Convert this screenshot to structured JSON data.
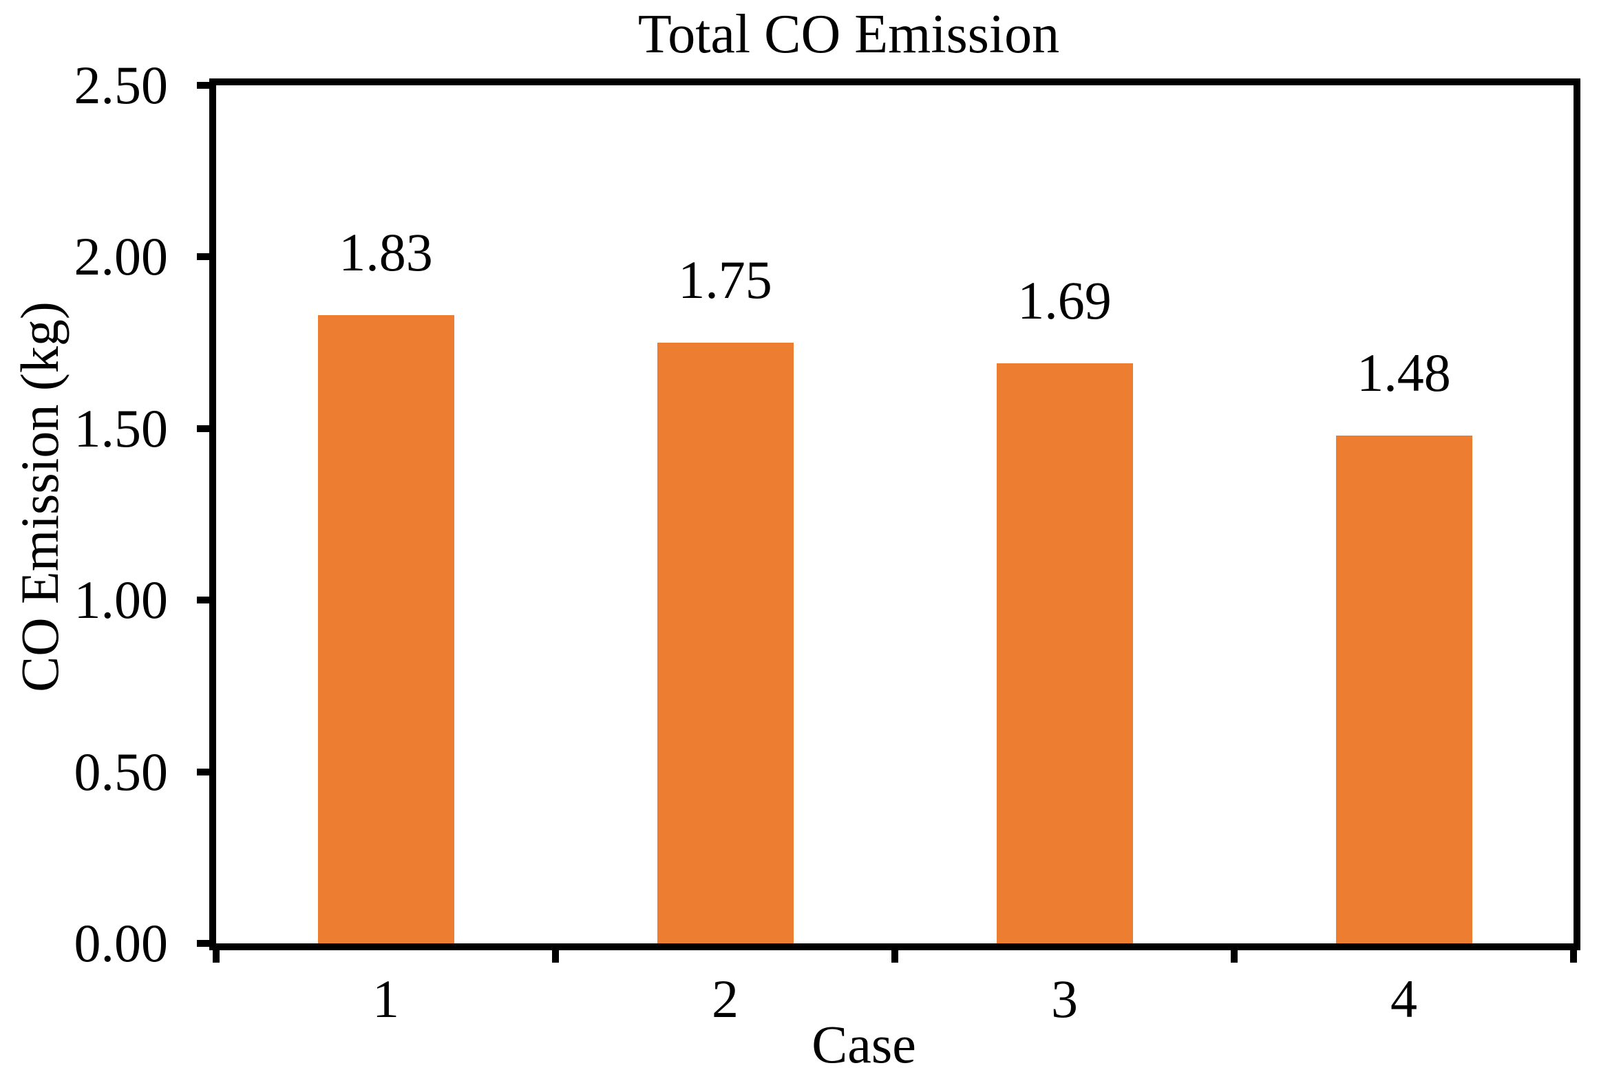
{
  "chart_data": {
    "type": "bar",
    "title": "Total CO Emission",
    "xlabel": "Case",
    "ylabel": "CO Emission (kg)",
    "categories": [
      "1",
      "2",
      "3",
      "4"
    ],
    "values": [
      1.83,
      1.75,
      1.69,
      1.48
    ],
    "data_labels": [
      "1.83",
      "1.75",
      "1.69",
      "1.48"
    ],
    "ylim": [
      0,
      2.5
    ],
    "ytick_step": 0.5,
    "ytick_labels": [
      "0.00",
      "0.50",
      "1.00",
      "1.50",
      "2.00",
      "2.50"
    ],
    "grid": false,
    "legend": "none",
    "bar_color": "#ED7D31",
    "axis_color": "#000000",
    "text_color": "#000000"
  }
}
